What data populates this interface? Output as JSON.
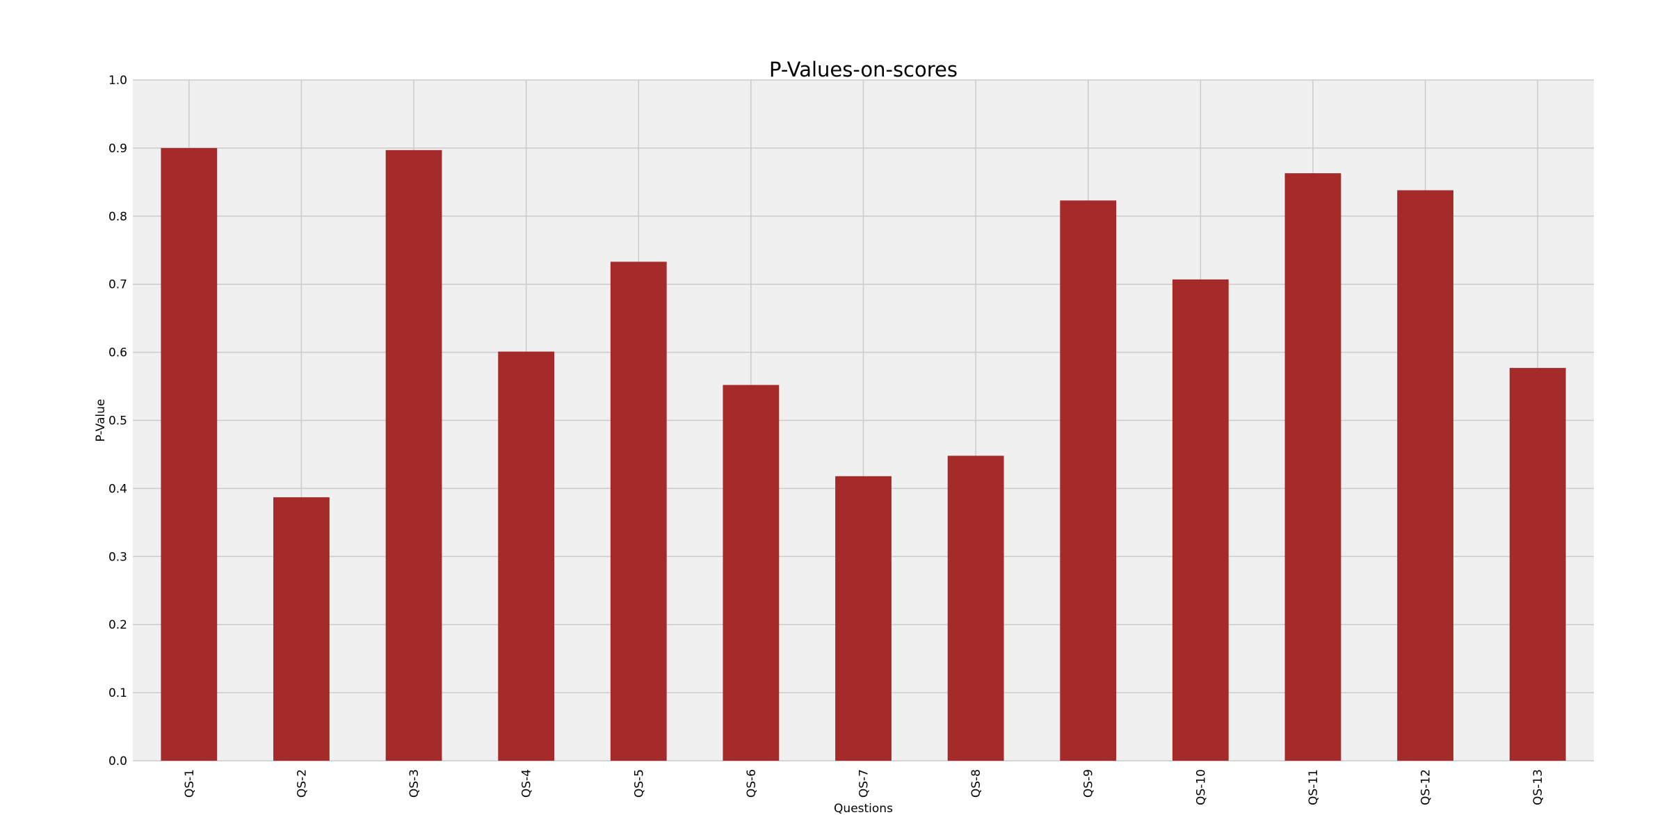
{
  "chart_data": {
    "type": "bar",
    "title": "P-Values-on-scores",
    "xlabel": "Questions",
    "ylabel": "P-Value",
    "categories": [
      "QS-1",
      "QS-2",
      "QS-3",
      "QS-4",
      "QS-5",
      "QS-6",
      "QS-7",
      "QS-8",
      "QS-9",
      "QS-10",
      "QS-11",
      "QS-12",
      "QS-13"
    ],
    "values": [
      0.9,
      0.387,
      0.897,
      0.601,
      0.733,
      0.552,
      0.418,
      0.448,
      0.823,
      0.707,
      0.863,
      0.838,
      0.577
    ],
    "ylim": [
      0,
      1.0
    ],
    "yticks": [
      "0.0",
      "0.1",
      "0.2",
      "0.3",
      "0.4",
      "0.5",
      "0.6",
      "0.7",
      "0.8",
      "0.9",
      "1.0"
    ],
    "grid": true,
    "bar_color": "#a52a2a",
    "plot_background": "#f0f0f0",
    "grid_color": "#cbcbcb"
  }
}
